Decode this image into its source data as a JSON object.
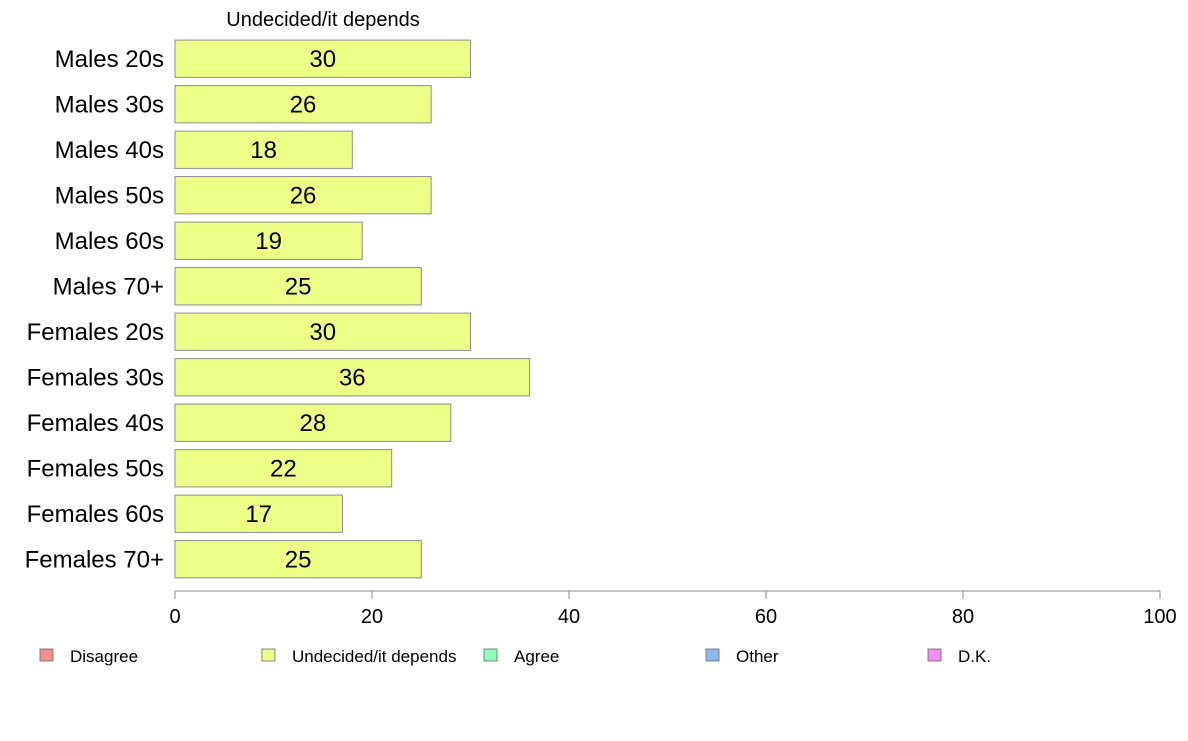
{
  "chart_data": {
    "type": "bar",
    "orientation": "horizontal",
    "title": "Undecided/it depends",
    "categories": [
      "Males 20s",
      "Males 30s",
      "Males 40s",
      "Males 50s",
      "Males 60s",
      "Males 70+",
      "Females 20s",
      "Females 30s",
      "Females 40s",
      "Females 50s",
      "Females 60s",
      "Females 70+"
    ],
    "series": [
      {
        "name": "Undecided/it depends",
        "color": "#eeff88",
        "values": [
          30,
          26,
          18,
          26,
          19,
          25,
          30,
          36,
          28,
          22,
          17,
          25
        ]
      }
    ],
    "xlim": [
      0,
      100
    ],
    "xticks": [
      0,
      20,
      40,
      60,
      80,
      100
    ],
    "grid": false,
    "legend": {
      "placement": "bottom",
      "items": [
        {
          "label": "Disagree",
          "color": "#f28e8e"
        },
        {
          "label": "Undecided/it depends",
          "color": "#eeff88"
        },
        {
          "label": "Agree",
          "color": "#8effb8"
        },
        {
          "label": "Other",
          "color": "#8eb8f2"
        },
        {
          "label": "D.K.",
          "color": "#f28ef2"
        }
      ]
    }
  }
}
